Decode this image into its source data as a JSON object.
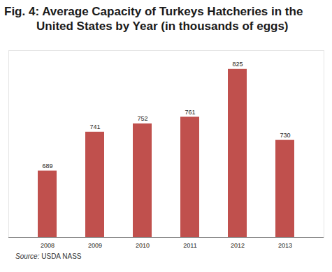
{
  "chart_data": {
    "type": "bar",
    "title": "Fig. 4: Average Capacity of Turkeys Hatcheries in the United States by Year (in thousands of eggs)",
    "source": "Source: USDA NASS",
    "categories": [
      "2008",
      "2009",
      "2010",
      "2011",
      "2012",
      "2013"
    ],
    "values": [
      689,
      741,
      752,
      761,
      825,
      730
    ],
    "color": "#c0504d",
    "ylim": [
      600,
      850
    ],
    "yticks": [],
    "grid": false,
    "data_labels": true,
    "tick_labels": "x"
  }
}
